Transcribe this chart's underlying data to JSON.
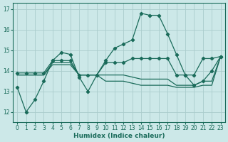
{
  "xlabel": "Humidex (Indice chaleur)",
  "background_color": "#cce8e8",
  "grid_color": "#aacccc",
  "line_color": "#1a6b5a",
  "xlim": [
    -0.5,
    23.5
  ],
  "ylim": [
    11.5,
    17.3
  ],
  "yticks": [
    12,
    13,
    14,
    15,
    16,
    17
  ],
  "xticks": [
    0,
    1,
    2,
    3,
    4,
    5,
    6,
    7,
    8,
    9,
    10,
    11,
    12,
    13,
    14,
    15,
    16,
    17,
    18,
    19,
    20,
    21,
    22,
    23
  ],
  "series": [
    {
      "x": [
        0,
        1,
        2,
        3,
        4,
        5,
        6,
        7,
        8,
        9,
        10,
        11,
        12,
        13,
        14,
        15,
        16,
        17,
        18,
        19,
        20,
        21,
        22,
        23
      ],
      "y": [
        13.2,
        12.0,
        12.6,
        13.5,
        14.5,
        14.9,
        14.8,
        13.7,
        13.0,
        13.8,
        14.5,
        15.1,
        15.3,
        15.5,
        16.8,
        16.7,
        16.7,
        15.8,
        14.8,
        13.8,
        13.3,
        13.5,
        14.0,
        14.7
      ],
      "has_markers": true,
      "lw": 0.9
    },
    {
      "x": [
        0,
        1,
        2,
        3,
        4,
        5,
        6,
        7,
        8,
        9,
        10,
        11,
        12,
        13,
        14,
        15,
        16,
        17,
        18,
        19,
        20,
        21,
        22,
        23
      ],
      "y": [
        13.9,
        13.9,
        13.9,
        13.9,
        14.5,
        14.5,
        14.5,
        13.8,
        13.8,
        13.8,
        14.4,
        14.4,
        14.4,
        14.6,
        14.6,
        14.6,
        14.6,
        14.6,
        13.8,
        13.8,
        13.8,
        14.6,
        14.6,
        14.7
      ],
      "has_markers": true,
      "lw": 0.9
    },
    {
      "x": [
        0,
        1,
        2,
        3,
        4,
        5,
        6,
        7,
        8,
        9,
        10,
        11,
        12,
        13,
        14,
        15,
        16,
        17,
        18,
        19,
        20,
        21,
        22,
        23
      ],
      "y": [
        13.8,
        13.8,
        13.8,
        13.8,
        14.4,
        14.4,
        14.4,
        13.8,
        13.8,
        13.8,
        13.8,
        13.8,
        13.8,
        13.7,
        13.6,
        13.6,
        13.6,
        13.6,
        13.3,
        13.3,
        13.3,
        13.5,
        13.5,
        14.7
      ],
      "has_markers": false,
      "lw": 0.9
    },
    {
      "x": [
        0,
        1,
        2,
        3,
        4,
        5,
        6,
        7,
        8,
        9,
        10,
        11,
        12,
        13,
        14,
        15,
        16,
        17,
        18,
        19,
        20,
        21,
        22,
        23
      ],
      "y": [
        13.8,
        13.8,
        13.8,
        13.8,
        14.3,
        14.3,
        14.3,
        13.8,
        13.8,
        13.8,
        13.5,
        13.5,
        13.5,
        13.4,
        13.3,
        13.3,
        13.3,
        13.3,
        13.2,
        13.2,
        13.2,
        13.3,
        13.3,
        14.7
      ],
      "has_markers": false,
      "lw": 0.9
    }
  ]
}
